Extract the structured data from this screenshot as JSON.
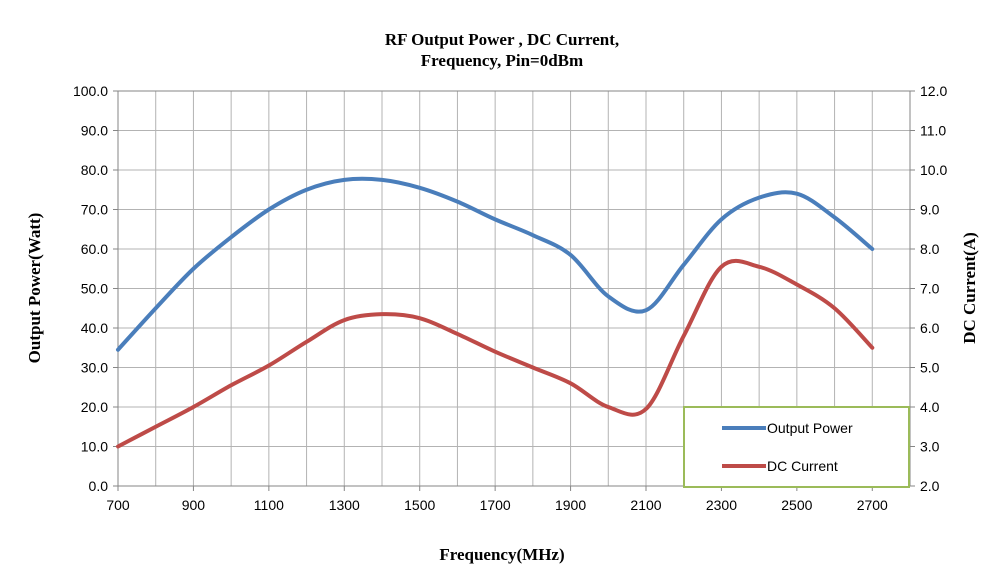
{
  "chart_data": {
    "type": "line",
    "title_lines": [
      "RF Output Power , DC Current,",
      "Frequency, Pin=0dBm"
    ],
    "xlabel": "Frequency(MHz)",
    "ylabel": "Output Power(Watt)",
    "y2label": "DC Current(A)",
    "xlim": [
      700,
      2800
    ],
    "ylim": [
      0,
      100
    ],
    "y2lim": [
      2,
      12
    ],
    "x_ticks": [
      "700",
      "900",
      "1100",
      "1300",
      "1500",
      "1700",
      "1900",
      "2100",
      "2300",
      "2500",
      "2700"
    ],
    "y_ticks": [
      "0.0",
      "10.0",
      "20.0",
      "30.0",
      "40.0",
      "50.0",
      "60.0",
      "70.0",
      "80.0",
      "90.0",
      "100.0"
    ],
    "y2_ticks": [
      "2.0",
      "3.0",
      "4.0",
      "5.0",
      "6.0",
      "7.0",
      "8.0",
      "9.0",
      "10.0",
      "11.0",
      "12.0"
    ],
    "grid": true,
    "legend_position": "bottom-right",
    "series": [
      {
        "name": "Output Power",
        "axis": "left",
        "color": "#4a7ebb",
        "x": [
          700,
          800,
          900,
          1000,
          1100,
          1200,
          1300,
          1400,
          1500,
          1600,
          1700,
          1800,
          1900,
          2000,
          2100,
          2200,
          2300,
          2400,
          2500,
          2600,
          2700
        ],
        "y": [
          34.5,
          45,
          55,
          63,
          70,
          75,
          77.5,
          77.5,
          75.5,
          72,
          67.5,
          63.5,
          58.5,
          48,
          44.5,
          56,
          67.5,
          73,
          74,
          68,
          60
        ]
      },
      {
        "name": "DC Current",
        "axis": "right",
        "color": "#be4b48",
        "x": [
          700,
          800,
          900,
          1000,
          1100,
          1200,
          1300,
          1400,
          1500,
          1600,
          1700,
          1800,
          1900,
          2000,
          2100,
          2200,
          2300,
          2400,
          2500,
          2600,
          2700
        ],
        "y": [
          3.0,
          3.5,
          4.0,
          4.55,
          5.05,
          5.65,
          6.2,
          6.35,
          6.25,
          5.85,
          5.4,
          5.0,
          4.6,
          4.0,
          3.95,
          5.8,
          7.55,
          7.55,
          7.1,
          6.5,
          5.5
        ]
      }
    ]
  }
}
